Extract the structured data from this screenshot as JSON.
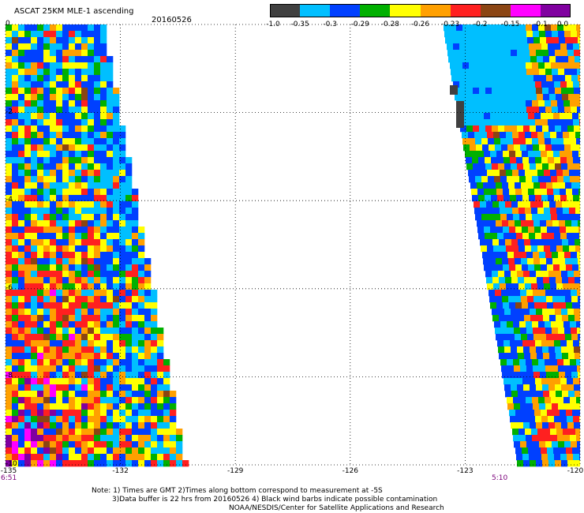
{
  "header": {
    "title": "ASCAT 25KM MLE-1 ascending",
    "date": "20160526"
  },
  "colorbar": {
    "labels": [
      "-1.0",
      "-0.35",
      "-0.3",
      "-0.29",
      "-0.28",
      "-0.26",
      "-0.23",
      "-0.2",
      "-0.15",
      "-0.1",
      "0.0"
    ],
    "colors": [
      "#404040",
      "#00bfff",
      "#0040ff",
      "#00b000",
      "#ffff00",
      "#ffa000",
      "#ff2020",
      "#8b4513",
      "#ff00ff",
      "#8000a0"
    ]
  },
  "axes": {
    "y_ticks": [
      "0",
      "-2",
      "-4",
      "-6",
      "-8",
      "-10"
    ],
    "x_ticks": [
      "-135",
      "-132",
      "-129",
      "-126",
      "-123",
      "-120"
    ],
    "x_range": [
      -135,
      -120
    ],
    "y_range": [
      -10,
      0
    ]
  },
  "times": {
    "left": "6:51",
    "right": "5:10"
  },
  "notes": {
    "line1": "Note: 1) Times are GMT 2)Times along bottom correspond to measurement at -5S",
    "line2": "3)Data buffer is 22 hrs from 20160526 4) Black wind barbs indicate possible contamination",
    "line3": "NOAA/NESDIS/Center for Satellite Applications and Research"
  }
}
